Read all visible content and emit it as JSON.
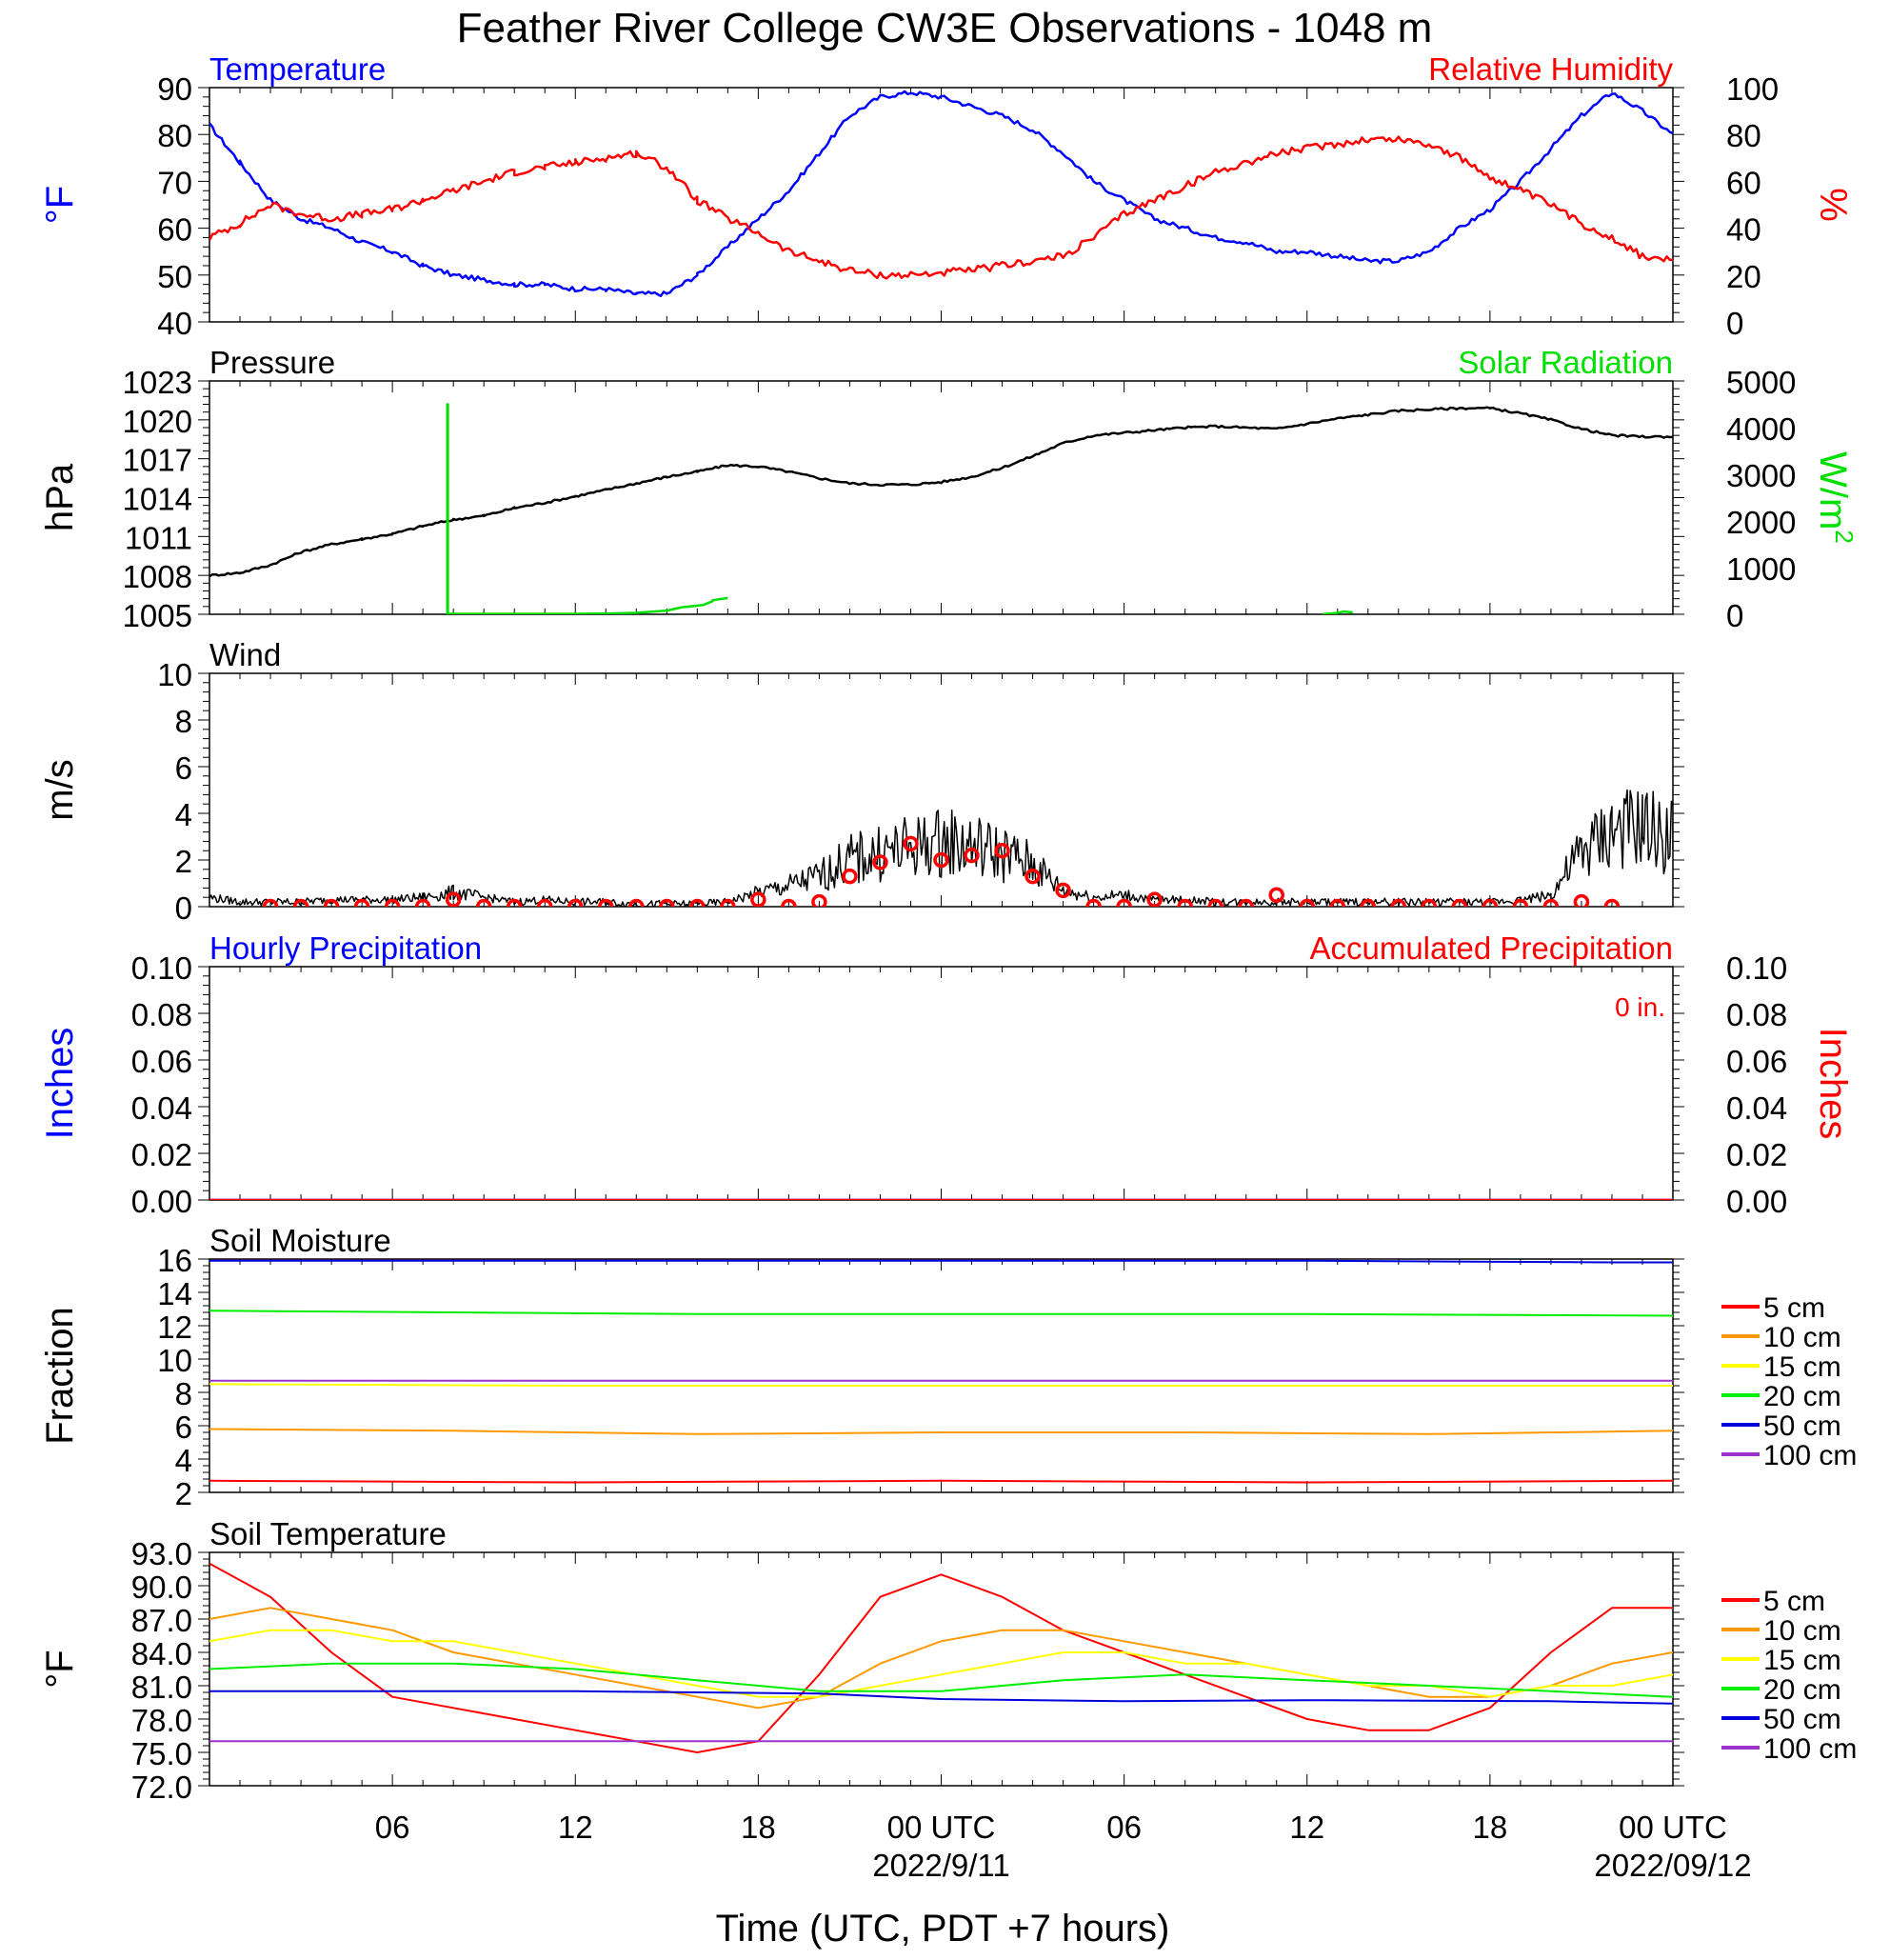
{
  "title": "Feather River College CW3E Observations - 1048 m",
  "x_axis": {
    "label": "Time (UTC, PDT +7 hours)",
    "range_hours": [
      0,
      48
    ],
    "tick_hours": [
      6,
      12,
      18,
      24,
      30,
      36,
      42,
      48
    ],
    "tick_labels": [
      "06",
      "12",
      "18",
      "00 UTC",
      "06",
      "12",
      "18",
      "00 UTC"
    ],
    "date_labels": [
      {
        "hour": 24,
        "text": "2022/9/11"
      },
      {
        "hour": 48,
        "text": "2022/09/12"
      }
    ]
  },
  "colors": {
    "temperature": "#0000ff",
    "humidity": "#ff0000",
    "pressure": "#000000",
    "solar": "#00e000",
    "wind": "#000000",
    "wind_markers": "#ff0000",
    "hourly_precip": "#0000ff",
    "accum_precip": "#ff0000",
    "soil_5": "#ff0000",
    "soil_10": "#ff9900",
    "soil_15": "#ffff00",
    "soil_20": "#00ee00",
    "soil_50": "#0000dd",
    "soil_100": "#9933cc"
  },
  "chart_data": [
    {
      "type": "line",
      "panel": "temperature-humidity",
      "left_title": "Temperature",
      "right_title": "Relative Humidity",
      "ylabel_left": "°F",
      "ylabel_right": "%",
      "ylim_left": [
        40,
        90
      ],
      "ylim_right": [
        0,
        100
      ],
      "yticks_left": [
        40,
        50,
        60,
        70,
        80,
        90
      ],
      "yticks_right": [
        0,
        20,
        40,
        60,
        80,
        100
      ],
      "series": [
        {
          "key": "temperature",
          "axis": "left",
          "x": [
            0,
            1,
            2,
            3,
            4,
            5,
            6,
            7,
            8,
            9,
            10,
            11,
            12,
            13,
            14,
            15,
            16,
            17,
            18,
            19,
            20,
            21,
            22,
            23,
            24,
            25,
            26,
            27,
            28,
            29,
            30,
            31,
            32,
            33,
            34,
            35,
            36,
            37,
            38,
            39,
            40,
            41,
            42,
            43,
            44,
            45,
            46,
            47,
            48
          ],
          "y": [
            82,
            74,
            66,
            62,
            60,
            57,
            55,
            52,
            50,
            49,
            48,
            48,
            47,
            47,
            46,
            46,
            50,
            56,
            62,
            68,
            76,
            84,
            88,
            89,
            88,
            86,
            84,
            81,
            76,
            70,
            66,
            62,
            60,
            58,
            57,
            55,
            55,
            54,
            53,
            53,
            55,
            60,
            64,
            70,
            77,
            84,
            89,
            85,
            80
          ]
        },
        {
          "key": "humidity",
          "axis": "right",
          "x": [
            0,
            1,
            2,
            3,
            4,
            5,
            6,
            7,
            8,
            9,
            10,
            11,
            12,
            13,
            14,
            15,
            16,
            17,
            18,
            19,
            20,
            21,
            22,
            23,
            24,
            25,
            26,
            27,
            28,
            29,
            30,
            31,
            32,
            33,
            34,
            35,
            36,
            37,
            38,
            39,
            40,
            41,
            42,
            43,
            44,
            45,
            46,
            47,
            48
          ],
          "y": [
            36,
            42,
            50,
            46,
            44,
            46,
            48,
            52,
            56,
            60,
            64,
            66,
            68,
            70,
            72,
            66,
            52,
            44,
            38,
            30,
            26,
            22,
            20,
            20,
            21,
            22,
            24,
            26,
            28,
            36,
            46,
            52,
            58,
            64,
            68,
            72,
            74,
            76,
            78,
            78,
            76,
            70,
            62,
            56,
            50,
            42,
            36,
            28,
            26
          ]
        }
      ]
    },
    {
      "type": "line",
      "panel": "pressure-solar",
      "left_title": "Pressure",
      "right_title": "Solar Radiation",
      "ylabel_left": "hPa",
      "ylabel_right": "W/m",
      "ylabel_right_sup": "2",
      "ylim_left": [
        1005,
        1023
      ],
      "ylim_right": [
        0,
        5000
      ],
      "yticks_left": [
        1005,
        1008,
        1011,
        1014,
        1017,
        1020,
        1023
      ],
      "yticks_right": [
        0,
        1000,
        2000,
        3000,
        4000,
        5000
      ],
      "series": [
        {
          "key": "pressure",
          "axis": "left",
          "x": [
            0,
            1,
            2,
            3,
            4,
            5,
            6,
            7,
            8,
            9,
            10,
            11,
            12,
            13,
            14,
            15,
            16,
            17,
            18,
            19,
            20,
            21,
            22,
            23,
            24,
            25,
            26,
            27,
            28,
            29,
            30,
            31,
            32,
            33,
            34,
            35,
            36,
            37,
            38,
            39,
            40,
            41,
            42,
            43,
            44,
            45,
            46,
            47,
            48
          ],
          "y": [
            1008.0,
            1008.2,
            1008.8,
            1009.8,
            1010.4,
            1010.8,
            1011.2,
            1011.8,
            1012.3,
            1012.6,
            1013.2,
            1013.6,
            1014.1,
            1014.6,
            1015.1,
            1015.6,
            1016.0,
            1016.5,
            1016.4,
            1016.0,
            1015.5,
            1015.1,
            1015.0,
            1015.0,
            1015.2,
            1015.6,
            1016.3,
            1017.2,
            1018.2,
            1018.8,
            1019.0,
            1019.2,
            1019.4,
            1019.5,
            1019.4,
            1019.3,
            1019.7,
            1020.1,
            1020.4,
            1020.7,
            1020.8,
            1020.9,
            1020.9,
            1020.5,
            1020.0,
            1019.3,
            1018.8,
            1018.7,
            1018.7
          ]
        },
        {
          "key": "solar",
          "axis": "right",
          "x": [
            7.8,
            7.8,
            7.82,
            7.82,
            8.2,
            10,
            12,
            13,
            14,
            15,
            15.5,
            16.2,
            16.5,
            16.5,
            16.8,
            17.0
          ],
          "y": [
            0,
            4500,
            4500,
            10,
            10,
            10,
            10,
            15,
            30,
            80,
            150,
            200,
            280,
            300,
            330,
            350
          ]
        },
        {
          "key": "solar",
          "axis": "right",
          "x": [
            36.5,
            37.0,
            37.2,
            37.5
          ],
          "y": [
            0,
            30,
            60,
            40
          ]
        }
      ]
    },
    {
      "type": "line",
      "panel": "wind",
      "left_title": "Wind",
      "ylabel_left": "m/s",
      "ylim_left": [
        0,
        10
      ],
      "yticks_left": [
        0,
        2,
        4,
        6,
        8,
        10
      ],
      "series": [
        {
          "key": "wind",
          "x": [
            0,
            1,
            2,
            3,
            4,
            5,
            6,
            7,
            8,
            9,
            10,
            11,
            12,
            13,
            14,
            15,
            16,
            17,
            18,
            19,
            20,
            21,
            22,
            23,
            24,
            25,
            26,
            27,
            28,
            29,
            30,
            31,
            32,
            33,
            34,
            35,
            36,
            37,
            38,
            39,
            40,
            41,
            42,
            43,
            44,
            45,
            46,
            47,
            48
          ],
          "y": [
            0.4,
            0.2,
            0.2,
            0.2,
            0.3,
            0.3,
            0.3,
            0.4,
            0.6,
            0.4,
            0.2,
            0.3,
            0.2,
            0.2,
            0.1,
            0.1,
            0.1,
            0.2,
            0.6,
            0.9,
            1.3,
            2.0,
            2.3,
            2.5,
            2.8,
            2.6,
            2.3,
            1.8,
            0.7,
            0.4,
            0.5,
            0.3,
            0.3,
            0.2,
            0.2,
            0.2,
            0.2,
            0.2,
            0.2,
            0.2,
            0.2,
            0.2,
            0.2,
            0.3,
            0.5,
            2.3,
            3.2,
            3.3,
            3.0
          ],
          "noise": 0.55
        },
        {
          "key": "wind_markers",
          "kind": "markers",
          "x": [
            2,
            3,
            4,
            5,
            6,
            7,
            8,
            9,
            10,
            11,
            12,
            13,
            14,
            15,
            16,
            17,
            18,
            19,
            20,
            21,
            22,
            23,
            24,
            25,
            26,
            27,
            28,
            29,
            30,
            31,
            32,
            33,
            34,
            35,
            36,
            37,
            38,
            39,
            40,
            41,
            42,
            43,
            44,
            45,
            46
          ],
          "y": [
            0,
            0,
            0,
            0,
            0,
            0,
            0.3,
            0,
            0,
            0,
            0,
            0,
            0,
            0,
            0,
            0,
            0.3,
            0,
            0.2,
            1.3,
            1.9,
            2.7,
            2.0,
            2.2,
            2.4,
            1.3,
            0.7,
            0,
            0,
            0.3,
            0,
            0,
            0,
            0.5,
            0,
            0,
            0,
            0,
            0,
            0,
            0,
            0,
            0,
            0.2,
            0
          ]
        }
      ]
    },
    {
      "type": "line",
      "panel": "precipitation",
      "left_title": "Hourly Precipitation",
      "right_title": "Accumulated Precipitation",
      "annotation": "0 in.",
      "ylabel_left": "Inches",
      "ylabel_right": "Inches",
      "ylim_left": [
        0,
        0.1
      ],
      "ylim_right": [
        0,
        0.1
      ],
      "yticks_left": [
        "0.00",
        "0.02",
        "0.04",
        "0.06",
        "0.08",
        "0.10"
      ],
      "yticks_right": [
        "0.00",
        "0.02",
        "0.04",
        "0.06",
        "0.08",
        "0.10"
      ],
      "series": [
        {
          "key": "hourly_precip",
          "x": [
            0,
            48
          ],
          "y": [
            0,
            0
          ]
        },
        {
          "key": "accum_precip",
          "x": [
            0,
            48
          ],
          "y": [
            0,
            0
          ]
        }
      ]
    },
    {
      "type": "line",
      "panel": "soil-moisture",
      "left_title": "Soil Moisture",
      "ylabel_left": "Fraction",
      "ylim_left": [
        2,
        16
      ],
      "yticks_left": [
        2,
        4,
        6,
        8,
        10,
        12,
        14,
        16
      ],
      "legend_position": "right",
      "series": [
        {
          "name": "5 cm",
          "key": "soil_5",
          "x": [
            0,
            12,
            24,
            36,
            48
          ],
          "y": [
            2.7,
            2.6,
            2.7,
            2.6,
            2.7
          ]
        },
        {
          "name": "10 cm",
          "key": "soil_10",
          "x": [
            0,
            8,
            16,
            24,
            32,
            40,
            48
          ],
          "y": [
            5.8,
            5.7,
            5.5,
            5.6,
            5.6,
            5.5,
            5.7
          ]
        },
        {
          "name": "15 cm",
          "key": "soil_15",
          "x": [
            0,
            12,
            24,
            36,
            48
          ],
          "y": [
            8.5,
            8.4,
            8.4,
            8.4,
            8.4
          ]
        },
        {
          "name": "20 cm",
          "key": "soil_20",
          "x": [
            0,
            8,
            16,
            24,
            36,
            48
          ],
          "y": [
            12.9,
            12.8,
            12.7,
            12.7,
            12.7,
            12.6
          ]
        },
        {
          "name": "50 cm",
          "key": "soil_50",
          "x": [
            0,
            16,
            24,
            36,
            46,
            48
          ],
          "y": [
            15.9,
            15.9,
            15.9,
            15.9,
            15.8,
            15.8
          ]
        },
        {
          "name": "100 cm",
          "key": "soil_100",
          "x": [
            0,
            24,
            48
          ],
          "y": [
            8.7,
            8.7,
            8.7
          ]
        }
      ]
    },
    {
      "type": "line",
      "panel": "soil-temperature",
      "left_title": "Soil Temperature",
      "ylabel_left": "°F",
      "ylim_left": [
        72,
        93
      ],
      "yticks_left": [
        "72.0",
        "75.0",
        "78.0",
        "81.0",
        "84.0",
        "87.0",
        "90.0",
        "93.0"
      ],
      "legend_position": "right",
      "series": [
        {
          "name": "5 cm",
          "key": "soil_5",
          "x": [
            0,
            2,
            4,
            6,
            8,
            10,
            12,
            14,
            16,
            18,
            20,
            22,
            24,
            26,
            28,
            30,
            32,
            34,
            36,
            38,
            40,
            42,
            44,
            46,
            48
          ],
          "y": [
            92,
            89,
            84,
            80,
            79,
            78,
            77,
            76,
            75,
            76,
            82,
            89,
            91,
            89,
            86,
            84,
            82,
            80,
            78,
            77,
            77,
            79,
            84,
            88,
            88
          ]
        },
        {
          "name": "10 cm",
          "key": "soil_10",
          "x": [
            0,
            2,
            4,
            6,
            8,
            10,
            12,
            14,
            16,
            18,
            20,
            22,
            24,
            26,
            28,
            30,
            32,
            34,
            36,
            38,
            40,
            42,
            44,
            46,
            48
          ],
          "y": [
            87,
            88,
            87,
            86,
            84,
            83,
            82,
            81,
            80,
            79,
            80,
            83,
            85,
            86,
            86,
            85,
            84,
            83,
            82,
            81,
            80,
            80,
            81,
            83,
            84
          ]
        },
        {
          "name": "15 cm",
          "key": "soil_15",
          "x": [
            0,
            2,
            4,
            6,
            8,
            10,
            12,
            14,
            16,
            18,
            20,
            22,
            24,
            26,
            28,
            30,
            32,
            34,
            36,
            38,
            40,
            42,
            44,
            46,
            48
          ],
          "y": [
            85,
            86,
            86,
            85,
            85,
            84,
            83,
            82,
            81,
            80,
            80,
            81,
            82,
            83,
            84,
            84,
            83,
            83,
            82,
            81,
            81,
            80,
            81,
            81,
            82
          ]
        },
        {
          "name": "20 cm",
          "key": "soil_20",
          "x": [
            0,
            4,
            8,
            12,
            16,
            20,
            24,
            28,
            32,
            36,
            40,
            44,
            48
          ],
          "y": [
            82.5,
            83,
            83,
            82.5,
            81.5,
            80.5,
            80.5,
            81.5,
            82,
            81.5,
            81,
            80.5,
            80
          ]
        },
        {
          "name": "50 cm",
          "key": "soil_50",
          "x": [
            0,
            12,
            20,
            24,
            30,
            36,
            44,
            48
          ],
          "y": [
            80.5,
            80.5,
            80.3,
            79.8,
            79.6,
            79.7,
            79.6,
            79.4
          ]
        },
        {
          "name": "100 cm",
          "key": "soil_100",
          "x": [
            0,
            24,
            48
          ],
          "y": [
            76,
            76,
            76
          ]
        }
      ]
    }
  ]
}
